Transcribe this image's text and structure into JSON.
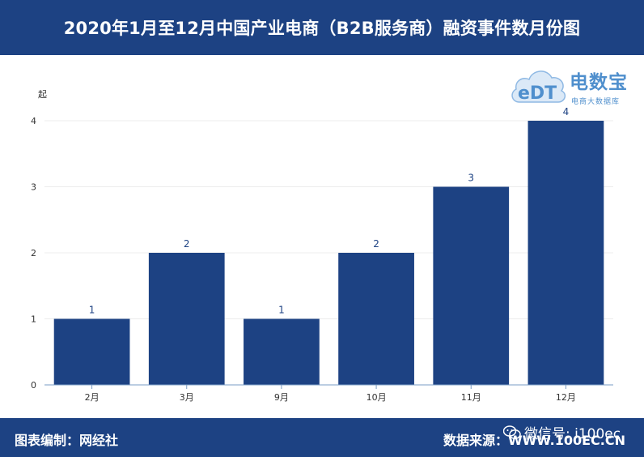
{
  "header": {
    "title": "2020年1月至12月中国产业电商（B2B服务商）融资事件数月份图"
  },
  "logo": {
    "brand": "电数宝",
    "tagline": "电商大数据库",
    "mark_text": "eDT"
  },
  "footer": {
    "credit": "图表编制：网经社",
    "source": "数据来源：WWW.100EC.CN",
    "wechat": "微信号: i100ec"
  },
  "colors": {
    "bar": "#1d4283",
    "header_bg": "#1d4283",
    "label": "#1d4283",
    "logo": "#4f8fcd"
  },
  "chart_data": {
    "type": "bar",
    "categories": [
      "2月",
      "3月",
      "9月",
      "10月",
      "11月",
      "12月"
    ],
    "values": [
      1,
      2,
      1,
      2,
      3,
      4
    ],
    "ylabel": "起",
    "ylim": [
      0,
      4
    ],
    "yticks": [
      0,
      1,
      2,
      3,
      4
    ],
    "grid": true,
    "data_labels": true
  }
}
